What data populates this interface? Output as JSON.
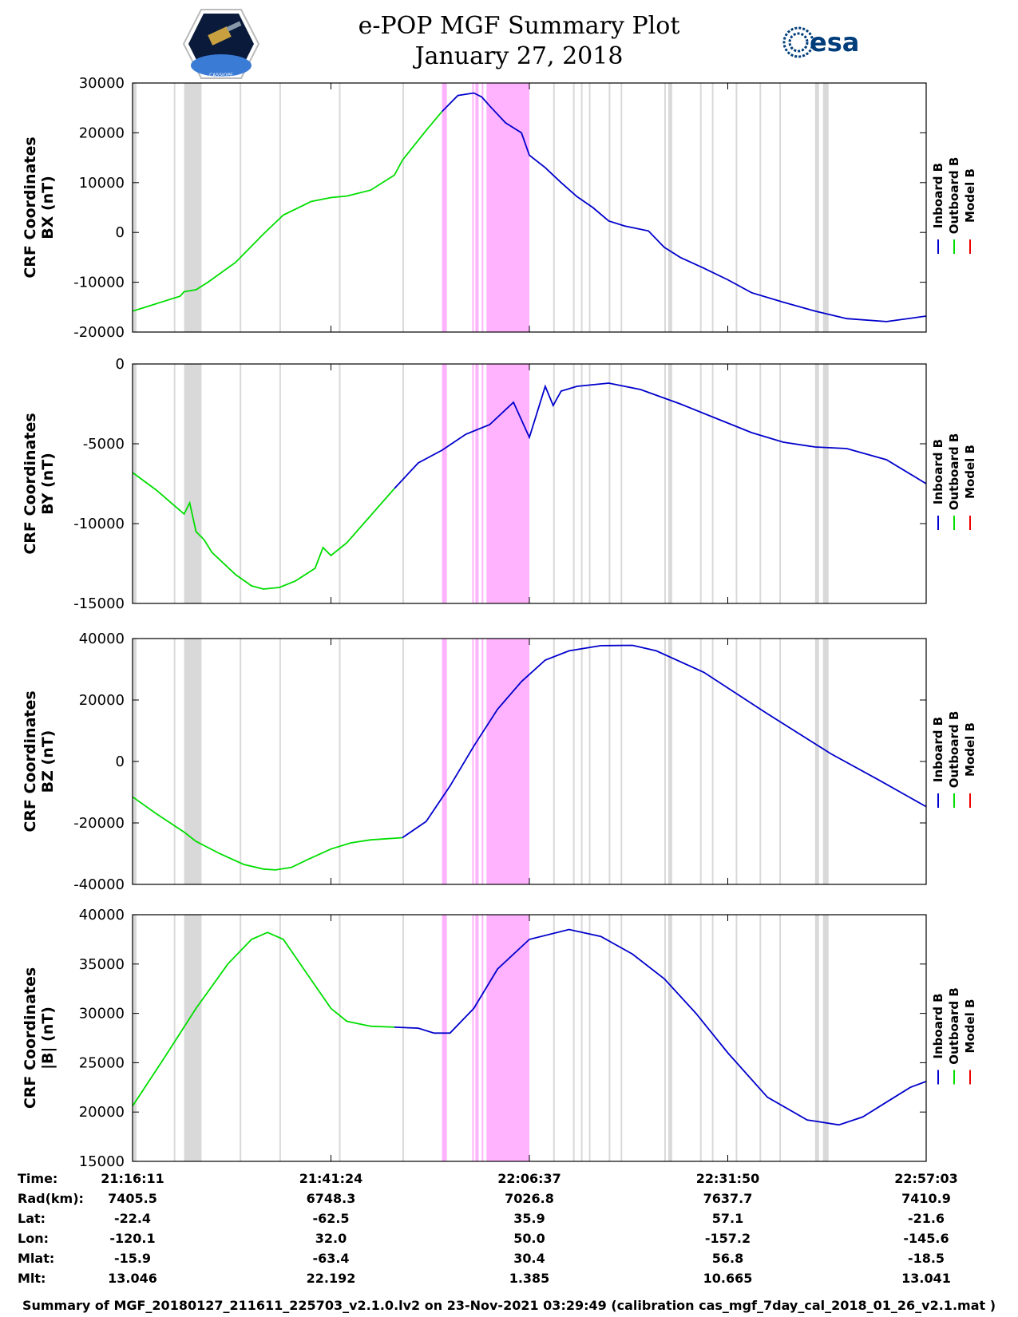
{
  "header": {
    "title_line1": "e-POP MGF Summary Plot",
    "title_line2": "January 27, 2018",
    "left_logo_text": "CASSIOPE",
    "right_logo_text": "esa"
  },
  "chart_data": [
    {
      "type": "line",
      "ylabel_line1": "CRF Coordinates",
      "ylabel_line2": "BX (nT)",
      "ylim": [
        -20000,
        30000
      ],
      "yticks": [
        30000,
        20000,
        10000,
        0,
        -10000,
        -20000
      ],
      "legend": [
        "Inboard B",
        "Outboard B",
        "Model B"
      ],
      "series": [
        {
          "name": "Outboard B",
          "color": "#00dd00",
          "x": [
            0,
            0.02,
            0.04,
            0.06,
            0.065,
            0.08,
            0.095,
            0.13,
            0.165,
            0.19,
            0.225,
            0.25,
            0.27,
            0.3,
            0.33,
            0.34,
            0.37,
            0.39
          ],
          "values": [
            -15800,
            -14800,
            -13800,
            -12800,
            -11900,
            -11500,
            -10000,
            -6000,
            -300,
            3500,
            6200,
            7000,
            7300,
            8500,
            11500,
            14500,
            20500,
            24300
          ]
        },
        {
          "name": "Inboard B",
          "color": "#0000cc",
          "x": [
            0.39,
            0.41,
            0.43,
            0.44,
            0.45,
            0.47,
            0.49,
            0.5,
            0.52,
            0.54,
            0.56,
            0.58,
            0.6,
            0.62,
            0.65,
            0.67,
            0.675,
            0.69,
            0.72,
            0.75,
            0.78,
            0.82,
            0.86,
            0.9,
            0.95,
            1.0
          ],
          "values": [
            24300,
            27500,
            28000,
            27200,
            25400,
            22000,
            20000,
            15500,
            13000,
            10000,
            7200,
            5000,
            2300,
            1300,
            300,
            -3000,
            -3500,
            -5000,
            -7200,
            -9500,
            -12100,
            -14000,
            -15800,
            -17300,
            -17900,
            -16800
          ]
        }
      ]
    },
    {
      "type": "line",
      "ylabel_line1": "CRF Coordinates",
      "ylabel_line2": "BY (nT)",
      "ylim": [
        -15000,
        0
      ],
      "yticks": [
        0,
        -5000,
        -10000,
        -15000
      ],
      "legend": [
        "Inboard B",
        "Outboard B",
        "Model B"
      ],
      "series": [
        {
          "name": "Outboard B",
          "color": "#00dd00",
          "x": [
            0,
            0.03,
            0.065,
            0.072,
            0.08,
            0.09,
            0.1,
            0.13,
            0.15,
            0.165,
            0.185,
            0.205,
            0.23,
            0.24,
            0.25,
            0.27,
            0.3,
            0.33
          ],
          "values": [
            -6800,
            -7900,
            -9400,
            -8700,
            -10500,
            -11000,
            -11800,
            -13200,
            -13900,
            -14100,
            -14000,
            -13600,
            -12800,
            -11500,
            -12000,
            -11200,
            -9500,
            -7800
          ]
        },
        {
          "name": "Inboard B",
          "color": "#0000cc",
          "x": [
            0.33,
            0.36,
            0.39,
            0.42,
            0.45,
            0.48,
            0.5,
            0.52,
            0.53,
            0.54,
            0.56,
            0.6,
            0.64,
            0.69,
            0.73,
            0.78,
            0.82,
            0.86,
            0.9,
            0.95,
            1.0
          ],
          "values": [
            -7800,
            -6200,
            -5400,
            -4400,
            -3800,
            -2400,
            -4600,
            -1400,
            -2600,
            -1700,
            -1400,
            -1200,
            -1600,
            -2500,
            -3300,
            -4300,
            -4900,
            -5200,
            -5300,
            -6000,
            -7500
          ]
        }
      ]
    },
    {
      "type": "line",
      "ylabel_line1": "CRF Coordinates",
      "ylabel_line2": "BZ (nT)",
      "ylim": [
        -40000,
        40000
      ],
      "yticks": [
        40000,
        20000,
        0,
        -20000,
        -40000
      ],
      "legend": [
        "Inboard B",
        "Outboard B",
        "Model B"
      ],
      "series": [
        {
          "name": "Outboard B",
          "color": "#00dd00",
          "x": [
            0,
            0.03,
            0.065,
            0.08,
            0.11,
            0.14,
            0.165,
            0.18,
            0.2,
            0.22,
            0.25,
            0.275,
            0.3,
            0.34
          ],
          "values": [
            -11500,
            -17000,
            -23000,
            -26000,
            -30000,
            -33500,
            -35000,
            -35300,
            -34500,
            -32000,
            -28500,
            -26500,
            -25500,
            -24800
          ]
        },
        {
          "name": "Inboard B",
          "color": "#0000cc",
          "x": [
            0.34,
            0.37,
            0.4,
            0.43,
            0.46,
            0.49,
            0.52,
            0.55,
            0.59,
            0.63,
            0.66,
            0.72,
            0.8,
            0.88,
            0.94,
            1.0
          ],
          "values": [
            -24800,
            -19500,
            -8000,
            5000,
            17000,
            26000,
            33000,
            36000,
            37700,
            37800,
            36000,
            29000,
            15500,
            2500,
            -6000,
            -14700
          ]
        }
      ]
    },
    {
      "type": "line",
      "ylabel_line1": "CRF Coordinates",
      "ylabel_line2": "|B| (nT)",
      "ylim": [
        15000,
        40000
      ],
      "yticks": [
        40000,
        35000,
        30000,
        25000,
        20000,
        15000
      ],
      "legend": [
        "Inboard B",
        "Outboard B",
        "Model B"
      ],
      "series": [
        {
          "name": "Outboard B",
          "color": "#00dd00",
          "x": [
            0,
            0.04,
            0.08,
            0.12,
            0.15,
            0.17,
            0.19,
            0.22,
            0.25,
            0.27,
            0.3,
            0.33
          ],
          "values": [
            20600,
            25500,
            30500,
            35000,
            37500,
            38200,
            37500,
            34000,
            30500,
            29200,
            28700,
            28600
          ]
        },
        {
          "name": "Inboard B",
          "color": "#0000cc",
          "x": [
            0.33,
            0.36,
            0.38,
            0.4,
            0.43,
            0.46,
            0.5,
            0.55,
            0.59,
            0.63,
            0.67,
            0.71,
            0.75,
            0.8,
            0.85,
            0.89,
            0.92,
            0.95,
            0.98,
            1.0
          ],
          "values": [
            28600,
            28500,
            28000,
            28000,
            30500,
            34500,
            37500,
            38500,
            37800,
            36000,
            33500,
            30000,
            26000,
            21500,
            19200,
            18700,
            19500,
            21000,
            22500,
            23100
          ]
        }
      ]
    }
  ],
  "gray_bands": [
    [
      0,
      0.005
    ],
    [
      0.052,
      0.054
    ],
    [
      0.065,
      0.087
    ],
    [
      0.135,
      0.137
    ],
    [
      0.185,
      0.187
    ],
    [
      0.26,
      0.262
    ],
    [
      0.34,
      0.342
    ],
    [
      0.53,
      0.532
    ],
    [
      0.555,
      0.557
    ],
    [
      0.565,
      0.567
    ],
    [
      0.575,
      0.577
    ],
    [
      0.6,
      0.602
    ],
    [
      0.615,
      0.617
    ],
    [
      0.67,
      0.672
    ],
    [
      0.675,
      0.68
    ],
    [
      0.715,
      0.717
    ],
    [
      0.73,
      0.732
    ],
    [
      0.76,
      0.762
    ],
    [
      0.79,
      0.792
    ],
    [
      0.815,
      0.817
    ],
    [
      0.86,
      0.865
    ],
    [
      0.87,
      0.877
    ]
  ],
  "magenta_bands": [
    [
      0.39,
      0.396
    ],
    [
      0.428,
      0.43
    ],
    [
      0.432,
      0.436
    ],
    [
      0.44,
      0.442
    ],
    [
      0.446,
      0.5
    ]
  ],
  "time_table": {
    "row_labels": [
      "Time:",
      "Rad(km):",
      "Lat:",
      "Lon:",
      "Mlat:",
      "Mlt:"
    ],
    "columns": [
      {
        "Time": "21:16:11",
        "Rad": "7405.5",
        "Lat": "-22.4",
        "Lon": "-120.1",
        "Mlat": "-15.9",
        "Mlt": "13.046"
      },
      {
        "Time": "21:41:24",
        "Rad": "6748.3",
        "Lat": "-62.5",
        "Lon": "32.0",
        "Mlat": "-63.4",
        "Mlt": "22.192"
      },
      {
        "Time": "22:06:37",
        "Rad": "7026.8",
        "Lat": "35.9",
        "Lon": "50.0",
        "Mlat": "30.4",
        "Mlt": "1.385"
      },
      {
        "Time": "22:31:50",
        "Rad": "7637.7",
        "Lat": "57.1",
        "Lon": "-157.2",
        "Mlat": "56.8",
        "Mlt": "10.665"
      },
      {
        "Time": "22:57:03",
        "Rad": "7410.9",
        "Lat": "-21.6",
        "Lon": "-145.6",
        "Mlat": "-18.5",
        "Mlt": "13.041"
      }
    ]
  },
  "footer": "Summary of MGF_20180127_211611_225703_v2.1.0.lv2 on 23-Nov-2021 03:29:49 (calibration cas_mgf_7day_cal_2018_01_26_v2.1.mat )",
  "colors": {
    "inboard": "#0000cc",
    "outboard": "#00dd00",
    "model": "#ee0000",
    "gray_band": "#d9d9d9",
    "magenta_band": "#ffb3ff"
  }
}
